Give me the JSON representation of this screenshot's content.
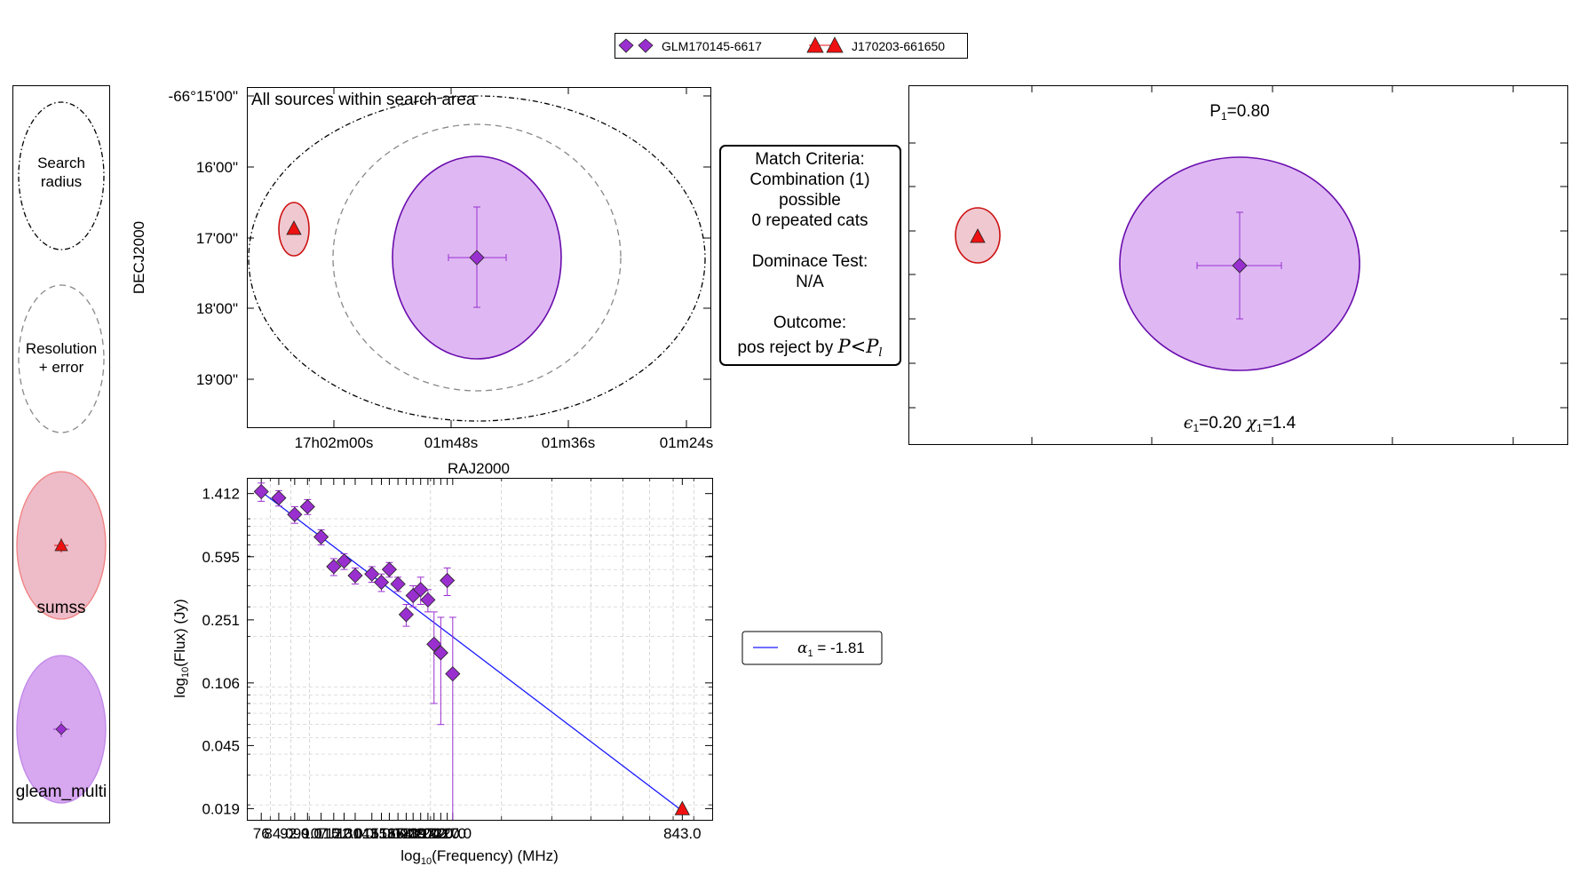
{
  "legend_top": {
    "items": [
      {
        "label": "GLM170145-6617",
        "marker": "diamond",
        "color": "#9a2fd0"
      },
      {
        "label": "J170203-661650",
        "marker": "triangle",
        "color": "#ee1111"
      }
    ]
  },
  "key_panel": {
    "search_label_1": "Search",
    "search_label_2": "radius",
    "res_label_1": "Resolution",
    "res_label_2": "+ error",
    "cat1_label": "sumss",
    "cat2_label": "gleam_multi"
  },
  "sky_plot": {
    "title": "All sources within search area",
    "xlabel": "RAJ2000",
    "ylabel": "DECJ2000",
    "xticks": [
      "17h02m00s",
      "01m48s",
      "01m36s",
      "01m24s"
    ],
    "yticks": [
      "-66°15'00\"",
      "16'00\"",
      "17'00\"",
      "18'00\"",
      "19'00\""
    ]
  },
  "criteria_box": {
    "lines": [
      "Match Criteria:",
      "Combination (1)",
      "possible",
      "0 repeated cats",
      "",
      "Dominace Test:",
      "N/A",
      "",
      "Outcome:"
    ],
    "outcome_prefix": "pos reject by ",
    "outcome_math": "P<P",
    "outcome_sub": "l"
  },
  "zoom_panel": {
    "p_prefix": "P",
    "p_sub": "1",
    "p_value": "=0.80",
    "eps_symbol": "ϵ",
    "eps_sub": "1",
    "eps_value": "=0.20 ",
    "chi_symbol": "χ",
    "chi_sub": "1",
    "chi_value": "=1.4"
  },
  "fit_legend": {
    "alpha_symbol": "α",
    "alpha_sub": "1",
    "alpha_value": " = -1.81",
    "line_color": "#1a1aff"
  },
  "chart_data": {
    "type": "scatter",
    "title": "",
    "xlabel_prefix": "log",
    "xlabel_sub": "10",
    "xlabel_suffix": "(Frequency) (MHz)",
    "ylabel_prefix": "log",
    "ylabel_sub": "10",
    "ylabel_suffix": "(Flux) (Jy)",
    "xscale": "log",
    "yscale": "log",
    "xlim": [
      70,
      1000
    ],
    "ylim": [
      0.0163,
      1.75
    ],
    "yticks": [
      1.412,
      0.595,
      0.251,
      0.106,
      0.045,
      0.019
    ],
    "xtick_last_label": "843.0",
    "xtick_first_label": "76",
    "grid": true,
    "series": [
      {
        "name": "GLM170145-6617",
        "marker": "diamond",
        "color": "#9a2fd0",
        "points": [
          {
            "x": 76,
            "y": 1.45,
            "err": 0.18
          },
          {
            "x": 84,
            "y": 1.33,
            "err": 0.14
          },
          {
            "x": 92,
            "y": 1.06,
            "err": 0.12
          },
          {
            "x": 99,
            "y": 1.18,
            "err": 0.12
          },
          {
            "x": 107,
            "y": 0.78,
            "err": 0.08
          },
          {
            "x": 115,
            "y": 0.52,
            "err": 0.06
          },
          {
            "x": 122,
            "y": 0.56,
            "err": 0.06
          },
          {
            "x": 130,
            "y": 0.46,
            "err": 0.05
          },
          {
            "x": 143,
            "y": 0.47,
            "err": 0.05
          },
          {
            "x": 151,
            "y": 0.42,
            "err": 0.05
          },
          {
            "x": 158,
            "y": 0.5,
            "err": 0.05
          },
          {
            "x": 166,
            "y": 0.41,
            "err": 0.04
          },
          {
            "x": 174,
            "y": 0.27,
            "err": 0.04
          },
          {
            "x": 181,
            "y": 0.35,
            "err": 0.05
          },
          {
            "x": 189,
            "y": 0.38,
            "err": 0.07
          },
          {
            "x": 197,
            "y": 0.33,
            "err": 0.05
          },
          {
            "x": 204,
            "y": 0.18,
            "err": 0.1
          },
          {
            "x": 212,
            "y": 0.16,
            "err": 0.1
          },
          {
            "x": 220,
            "y": 0.43,
            "err": 0.08
          },
          {
            "x": 227,
            "y": 0.12,
            "err": 0.14
          }
        ]
      },
      {
        "name": "J170203-661650",
        "marker": "triangle",
        "color": "#ee1111",
        "points": [
          {
            "x": 843,
            "y": 0.019,
            "err": 0
          }
        ]
      }
    ],
    "fit_line": {
      "x": [
        76,
        843
      ],
      "y": [
        1.45,
        0.0184
      ],
      "color": "#1a1aff"
    }
  }
}
